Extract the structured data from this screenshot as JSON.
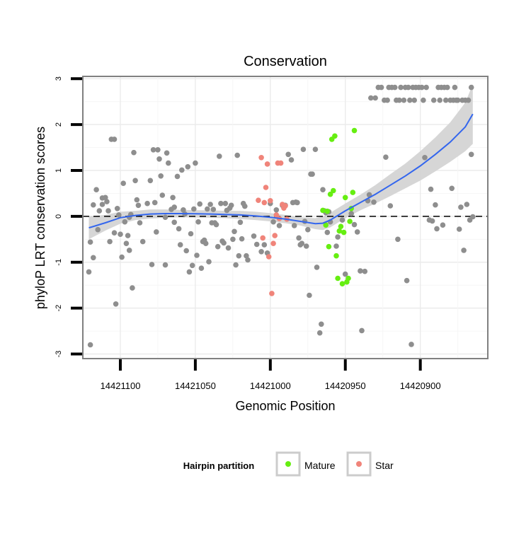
{
  "chart_data": {
    "type": "scatter",
    "title": "Conservation",
    "xlabel": "Genomic Position",
    "ylabel": "phyloP LRT conservation scores",
    "xlim": [
      14421125,
      14420855
    ],
    "ylim": [
      -3.1,
      3.05
    ],
    "x_ticks": [
      14421100,
      14421050,
      14421000,
      14420950,
      14420900
    ],
    "x_tick_labels": [
      "14421100",
      "14421050",
      "14421000",
      "14420950",
      "14420900"
    ],
    "y_ticks": [
      -3,
      -2,
      -1,
      0,
      1,
      2,
      3
    ],
    "y_tick_labels": [
      "-3",
      "-2",
      "-1",
      "0",
      "1",
      "2",
      "3"
    ],
    "reference_line": {
      "y": 0,
      "style": "dashed"
    },
    "legend": {
      "title": "Hairpin partition",
      "position": "bottom",
      "entries": [
        {
          "label": "Mature",
          "color": "#66ee11"
        },
        {
          "label": "Star",
          "color": "#f0847a"
        }
      ]
    },
    "colors": {
      "other": "#8e8e8e",
      "smooth_line": "#3366ee",
      "ribbon": "#d4d4d4"
    },
    "series": [
      {
        "name": "Other",
        "color": "#8e8e8e",
        "points": [
          [
            14421121,
            -1.21
          ],
          [
            14421120,
            -2.8
          ],
          [
            14421120,
            -0.56
          ],
          [
            14421118,
            -0.9
          ],
          [
            14421118,
            0.25
          ],
          [
            14421116,
            0.58
          ],
          [
            14421115,
            -0.29
          ],
          [
            14421114,
            0.12
          ],
          [
            14421112,
            0.4
          ],
          [
            14421112,
            0.26
          ],
          [
            14421110,
            0.41
          ],
          [
            14421109,
            0.32
          ],
          [
            14421108,
            0.12
          ],
          [
            14421107,
            -0.55
          ],
          [
            14421106,
            1.68
          ],
          [
            14421104,
            1.68
          ],
          [
            14421104,
            -0.36
          ],
          [
            14421103,
            -1.91
          ],
          [
            14421102,
            0.17
          ],
          [
            14421101,
            0.03
          ],
          [
            14421100,
            -0.39
          ],
          [
            14421099,
            -0.89
          ],
          [
            14421098,
            0.72
          ],
          [
            14421097,
            -0.12
          ],
          [
            14421096,
            -0.59
          ],
          [
            14421095,
            -0.42
          ],
          [
            14421094,
            -0.74
          ],
          [
            14421094,
            -0.02
          ],
          [
            14421093,
            0.04
          ],
          [
            14421092,
            -1.56
          ],
          [
            14421091,
            1.39
          ],
          [
            14421090,
            0.78
          ],
          [
            14421089,
            0.36
          ],
          [
            14421088,
            0.24
          ],
          [
            14421087,
            -0.14
          ],
          [
            14421085,
            -0.55
          ],
          [
            14421082,
            0.28
          ],
          [
            14421080,
            0.78
          ],
          [
            14421079,
            -1.05
          ],
          [
            14421078,
            1.45
          ],
          [
            14421077,
            0.3
          ],
          [
            14421076,
            -0.34
          ],
          [
            14421075,
            1.45
          ],
          [
            14421074,
            1.25
          ],
          [
            14421073,
            0.88
          ],
          [
            14421072,
            0.46
          ],
          [
            14421070,
            -1.06
          ],
          [
            14421070,
            -0.02
          ],
          [
            14421069,
            1.38
          ],
          [
            14421068,
            1.16
          ],
          [
            14421066,
            0.15
          ],
          [
            14421065,
            0.41
          ],
          [
            14421064,
            -0.13
          ],
          [
            14421064,
            0.2
          ],
          [
            14421062,
            0.87
          ],
          [
            14421061,
            -0.27
          ],
          [
            14421060,
            -0.62
          ],
          [
            14421059,
            1.01
          ],
          [
            14421058,
            0.14
          ],
          [
            14421057,
            0.05
          ],
          [
            14421056,
            -0.75
          ],
          [
            14421055,
            1.08
          ],
          [
            14421054,
            -1.21
          ],
          [
            14421053,
            -0.38
          ],
          [
            14421052,
            -1.07
          ],
          [
            14421051,
            0.16
          ],
          [
            14421050,
            1.16
          ],
          [
            14421049,
            -0.85
          ],
          [
            14421048,
            -0.12
          ],
          [
            14421047,
            0.27
          ],
          [
            14421046,
            -1.13
          ],
          [
            14421045,
            -0.55
          ],
          [
            14421044,
            -0.52
          ],
          [
            14421043,
            -0.59
          ],
          [
            14421042,
            0.16
          ],
          [
            14421041,
            -0.99
          ],
          [
            14421040,
            0.26
          ],
          [
            14421039,
            -0.14
          ],
          [
            14421038,
            0.15
          ],
          [
            14421037,
            -0.14
          ],
          [
            14421036,
            -0.18
          ],
          [
            14421035,
            -0.66
          ],
          [
            14421034,
            1.31
          ],
          [
            14421033,
            0.28
          ],
          [
            14421032,
            -0.54
          ],
          [
            14421031,
            -0.58
          ],
          [
            14421030,
            0.28
          ],
          [
            14421029,
            0.13
          ],
          [
            14421028,
            -0.69
          ],
          [
            14421027,
            0.18
          ],
          [
            14421026,
            0.24
          ],
          [
            14421025,
            -0.5
          ],
          [
            14421024,
            -0.33
          ],
          [
            14421023,
            -1.06
          ],
          [
            14421022,
            1.33
          ],
          [
            14421021,
            -0.86
          ],
          [
            14421020,
            -0.13
          ],
          [
            14421019,
            -0.49
          ],
          [
            14421018,
            0.28
          ],
          [
            14421017,
            0.22
          ],
          [
            14421016,
            -0.86
          ],
          [
            14421015,
            -0.95
          ],
          [
            14421011,
            -0.43
          ],
          [
            14421009,
            -0.61
          ],
          [
            14421006,
            -0.77
          ],
          [
            14421004,
            -0.62
          ],
          [
            14421002,
            -0.8
          ],
          [
            14421000,
            0.28
          ],
          [
            14420998,
            -0.12
          ],
          [
            14420996,
            0.14
          ],
          [
            14420994,
            -0.2
          ],
          [
            14420992,
            0.24
          ],
          [
            14420990,
            0.24
          ],
          [
            14420988,
            1.35
          ],
          [
            14420986,
            1.23
          ],
          [
            14420985,
            0.3
          ],
          [
            14420984,
            -0.2
          ],
          [
            14420983,
            0.31
          ],
          [
            14420982,
            0.3
          ],
          [
            14420981,
            -0.47
          ],
          [
            14420980,
            -0.62
          ],
          [
            14420979,
            -0.59
          ],
          [
            14420978,
            1.46
          ],
          [
            14420977,
            -0.11
          ],
          [
            14420976,
            -0.65
          ],
          [
            14420975,
            -0.29
          ],
          [
            14420974,
            -1.72
          ],
          [
            14420973,
            0.92
          ],
          [
            14420972,
            0.92
          ],
          [
            14420970,
            1.46
          ],
          [
            14420969,
            -1.11
          ],
          [
            14420967,
            -2.54
          ],
          [
            14420966,
            -2.35
          ],
          [
            14420965,
            0.58
          ],
          [
            14420964,
            0.12
          ],
          [
            14420963,
            0.08
          ],
          [
            14420962,
            -0.35
          ],
          [
            14420961,
            0.1
          ],
          [
            14420960,
            -0.12
          ],
          [
            14420956,
            -0.65
          ],
          [
            14420955,
            -0.45
          ],
          [
            14420952,
            -0.08
          ],
          [
            14420950,
            -1.26
          ],
          [
            14420946,
            0.06
          ],
          [
            14420944,
            -0.18
          ],
          [
            14420942,
            -0.34
          ],
          [
            14420940,
            -1.19
          ],
          [
            14420939,
            -2.49
          ],
          [
            14420937,
            -1.2
          ],
          [
            14420935,
            0.34
          ],
          [
            14420934,
            0.47
          ],
          [
            14420933,
            2.58
          ],
          [
            14420931,
            0.31
          ],
          [
            14420930,
            2.58
          ],
          [
            14420928,
            2.81
          ],
          [
            14420926,
            2.81
          ],
          [
            14420924,
            2.53
          ],
          [
            14420923,
            1.29
          ],
          [
            14420922,
            2.53
          ],
          [
            14420921,
            2.81
          ],
          [
            14420920,
            0.23
          ],
          [
            14420919,
            2.81
          ],
          [
            14420917,
            2.81
          ],
          [
            14420916,
            2.53
          ],
          [
            14420915,
            -0.5
          ],
          [
            14420914,
            2.53
          ],
          [
            14420913,
            2.81
          ],
          [
            14420911,
            2.53
          ],
          [
            14420910,
            2.81
          ],
          [
            14420909,
            -1.4
          ],
          [
            14420908,
            2.81
          ],
          [
            14420907,
            2.53
          ],
          [
            14420906,
            -2.79
          ],
          [
            14420905,
            2.81
          ],
          [
            14420904,
            2.53
          ],
          [
            14420903,
            2.81
          ],
          [
            14420901,
            2.81
          ],
          [
            14420899,
            2.81
          ],
          [
            14420898,
            2.53
          ],
          [
            14420897,
            1.28
          ],
          [
            14420896,
            2.81
          ],
          [
            14420894,
            -0.08
          ],
          [
            14420893,
            0.59
          ],
          [
            14420892,
            -0.1
          ],
          [
            14420891,
            2.53
          ],
          [
            14420890,
            0.25
          ],
          [
            14420889,
            -0.27
          ],
          [
            14420888,
            2.81
          ],
          [
            14420887,
            2.53
          ],
          [
            14420886,
            2.81
          ],
          [
            14420885,
            -0.19
          ],
          [
            14420884,
            2.81
          ],
          [
            14420883,
            2.53
          ],
          [
            14420882,
            2.81
          ],
          [
            14420880,
            2.53
          ],
          [
            14420879,
            0.61
          ],
          [
            14420878,
            2.53
          ],
          [
            14420877,
            2.81
          ],
          [
            14420876,
            2.53
          ],
          [
            14420875,
            2.53
          ],
          [
            14420874,
            -0.28
          ],
          [
            14420873,
            0.2
          ],
          [
            14420872,
            2.53
          ],
          [
            14420871,
            -0.74
          ],
          [
            14420870,
            2.53
          ],
          [
            14420869,
            0.26
          ],
          [
            14420868,
            2.53
          ],
          [
            14420867,
            -0.08
          ],
          [
            14420866,
            2.81
          ],
          [
            14420866,
            1.35
          ],
          [
            14420865,
            -0.01
          ]
        ]
      },
      {
        "name": "Star",
        "color": "#f0847a",
        "points": [
          [
            14421008,
            0.35
          ],
          [
            14421006,
            1.28
          ],
          [
            14421005,
            -0.47
          ],
          [
            14421004,
            0.3
          ],
          [
            14421003,
            0.63
          ],
          [
            14421002,
            1.14
          ],
          [
            14421001,
            -0.88
          ],
          [
            14421000,
            0.34
          ],
          [
            14420999,
            -1.68
          ],
          [
            14420998,
            -0.59
          ],
          [
            14420997,
            -0.42
          ],
          [
            14420996,
            0.03
          ],
          [
            14420995,
            1.16
          ],
          [
            14420994,
            -0.05
          ],
          [
            14420993,
            1.16
          ],
          [
            14420992,
            0.26
          ],
          [
            14420991,
            0.18
          ],
          [
            14420990,
            0.23
          ],
          [
            14420989,
            -0.06
          ]
        ]
      },
      {
        "name": "Mature",
        "color": "#66ee11",
        "points": [
          [
            14420965,
            0.13
          ],
          [
            14420963,
            -0.19
          ],
          [
            14420962,
            0.11
          ],
          [
            14420961,
            -0.66
          ],
          [
            14420960,
            0.48
          ],
          [
            14420959,
            1.68
          ],
          [
            14420958,
            0.56
          ],
          [
            14420957,
            1.75
          ],
          [
            14420956,
            -0.86
          ],
          [
            14420955,
            -1.35
          ],
          [
            14420954,
            -0.32
          ],
          [
            14420953,
            -0.22
          ],
          [
            14420952,
            -1.47
          ],
          [
            14420951,
            -0.35
          ],
          [
            14420950,
            0.41
          ],
          [
            14420949,
            -1.43
          ],
          [
            14420948,
            -1.35
          ],
          [
            14420947,
            -0.11
          ],
          [
            14420946,
            0.17
          ],
          [
            14420945,
            0.52
          ],
          [
            14420944,
            1.87
          ]
        ]
      }
    ],
    "smooth": {
      "x": [
        14421121,
        14421110,
        14421100,
        14421090,
        14421080,
        14421070,
        14421060,
        14421050,
        14421040,
        14421030,
        14421020,
        14421010,
        14421000,
        14420990,
        14420980,
        14420970,
        14420965,
        14420960,
        14420950,
        14420940,
        14420930,
        14420920,
        14420910,
        14420900,
        14420890,
        14420880,
        14420870,
        14420865
      ],
      "y": [
        -0.25,
        -0.14,
        -0.03,
        0.02,
        0.05,
        0.06,
        0.06,
        0.055,
        0.05,
        0.04,
        0.03,
        0.01,
        -0.02,
        -0.06,
        -0.11,
        -0.16,
        -0.15,
        -0.08,
        0.12,
        0.3,
        0.48,
        0.68,
        0.88,
        1.1,
        1.35,
        1.62,
        1.95,
        2.23
      ],
      "lower": [
        -0.5,
        -0.31,
        -0.16,
        -0.08,
        -0.05,
        -0.03,
        -0.02,
        -0.025,
        -0.03,
        -0.04,
        -0.06,
        -0.08,
        -0.11,
        -0.15,
        -0.2,
        -0.28,
        -0.3,
        -0.24,
        -0.04,
        0.13,
        0.28,
        0.44,
        0.61,
        0.78,
        0.98,
        1.19,
        1.42,
        1.58
      ],
      "upper": [
        0.0,
        0.03,
        0.1,
        0.12,
        0.15,
        0.15,
        0.14,
        0.135,
        0.13,
        0.12,
        0.12,
        0.1,
        0.07,
        0.03,
        -0.02,
        -0.04,
        0.0,
        0.08,
        0.28,
        0.47,
        0.68,
        0.92,
        1.15,
        1.42,
        1.72,
        2.05,
        2.48,
        2.88
      ]
    }
  }
}
